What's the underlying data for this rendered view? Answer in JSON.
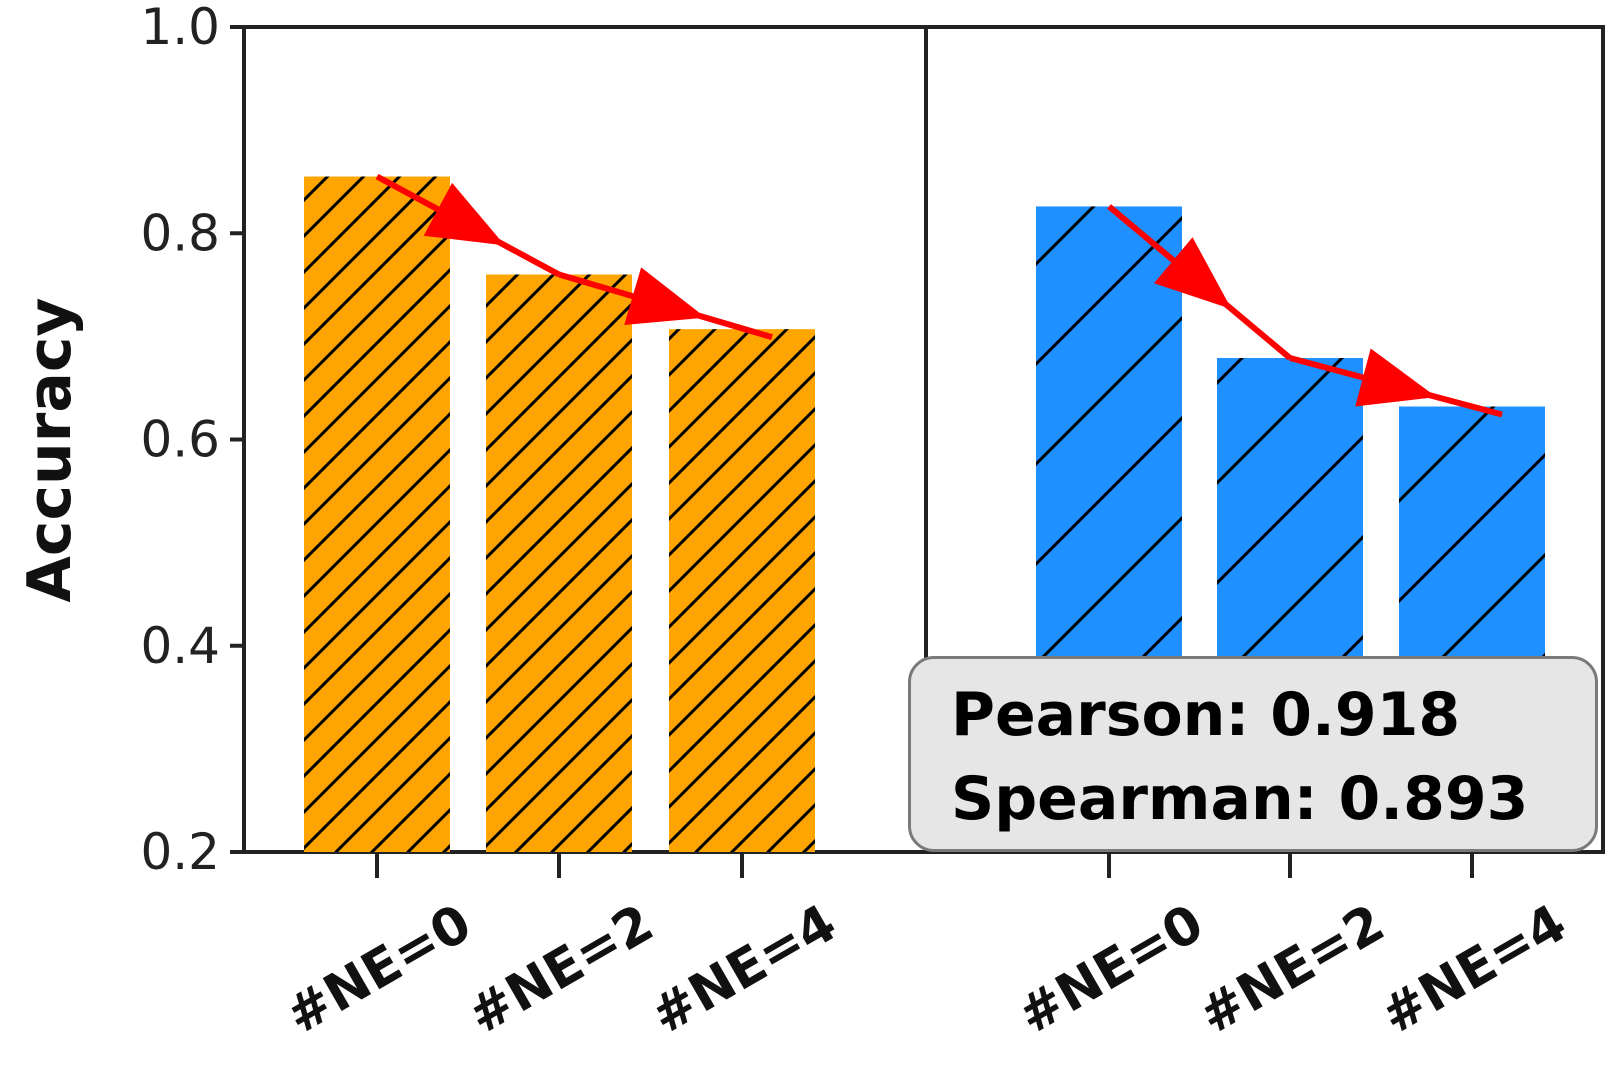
{
  "chart_data": [
    {
      "type": "bar",
      "categories": [
        "#NE=0",
        "#NE=2",
        "#NE=4"
      ],
      "values": [
        0.855,
        0.76,
        0.707
      ],
      "color": "#ffa500",
      "ylabel": "Accuracy",
      "ylim": [
        0.2,
        1.0
      ],
      "yticks": [
        "0.2",
        "0.4",
        "0.6",
        "0.8",
        "1.0"
      ],
      "trend_arrow_color": "#ff0000"
    },
    {
      "type": "bar",
      "categories": [
        "#NE=0",
        "#NE=2",
        "#NE=4"
      ],
      "values": [
        0.826,
        0.679,
        0.632
      ],
      "color": "#1e90ff",
      "ylim": [
        0.2,
        1.0
      ],
      "trend_arrow_color": "#ff0000"
    }
  ],
  "stats": {
    "pearson": "Pearson: 0.918",
    "spearman": "Spearman: 0.893"
  }
}
